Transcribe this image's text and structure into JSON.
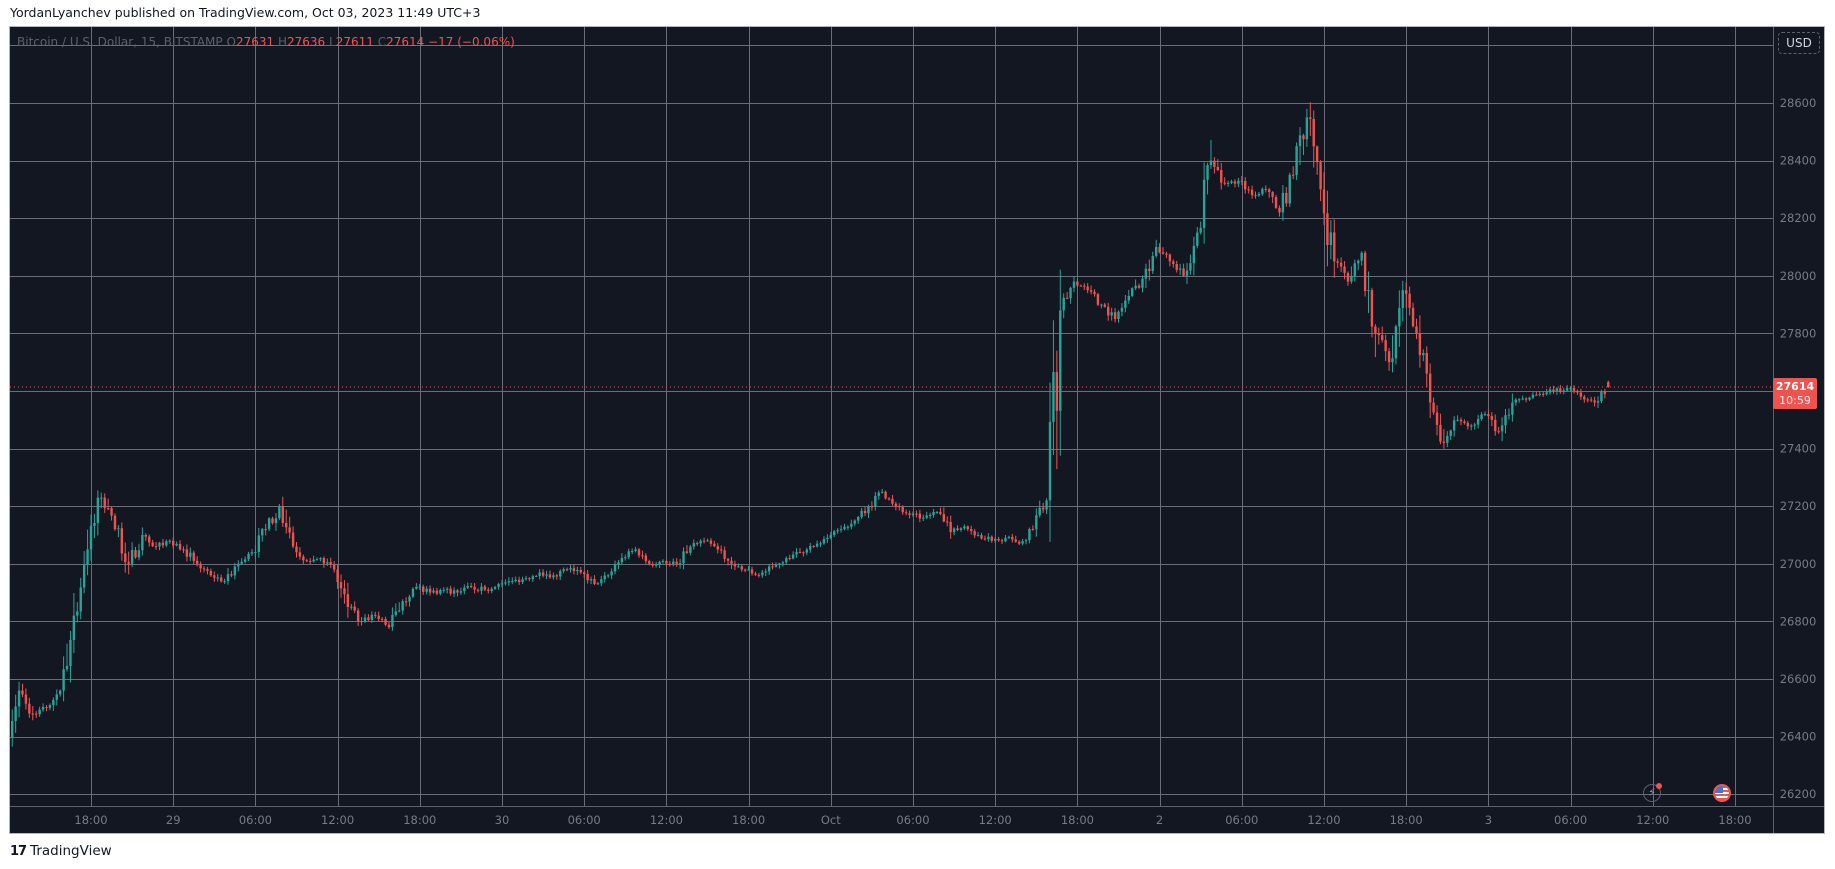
{
  "header": {
    "published": "YordanLyanchev published on TradingView.com, Oct 03, 2023 11:49 UTC+3"
  },
  "legend": {
    "symbol": "Bitcoin / U.S. Dollar, 15, BITSTAMP",
    "o_label": "O",
    "o": "27631",
    "h_label": "H",
    "h": "27636",
    "l_label": "L",
    "l": "27611",
    "c_label": "C",
    "c": "27614",
    "change": "−17 (−0.06%)"
  },
  "currency": "USD",
  "last_price": {
    "price": "27614",
    "countdown": "10:59",
    "value": 27614
  },
  "colors": {
    "background": "#131722",
    "grid": "#6a6d78",
    "up": "#26a69a",
    "down": "#ef5350",
    "axis_text": "#787b86"
  },
  "footer": {
    "brand": "TradingView",
    "logo": "17"
  },
  "icons": {
    "events": [
      "lightning-event-icon",
      "us-flag-event-icon"
    ]
  },
  "chart_data": {
    "type": "candlestick",
    "title": "Bitcoin / U.S. Dollar, 15, BITSTAMP",
    "interval": "15m",
    "xlabel": "",
    "ylabel": "USD",
    "ylim": [
      26160,
      28880
    ],
    "grid": true,
    "y_ticks": [
      26200,
      26400,
      26600,
      26800,
      27000,
      27200,
      27400,
      27600,
      27800,
      28000,
      28200,
      28400,
      28600
    ],
    "x_ticks": [
      "18:00",
      "29",
      "06:00",
      "12:00",
      "18:00",
      "30",
      "06:00",
      "12:00",
      "18:00",
      "Oct",
      "06:00",
      "12:00",
      "18:00",
      "2",
      "06:00",
      "12:00",
      "18:00",
      "3",
      "06:00",
      "12:00",
      "18:00"
    ],
    "x_tick_hours": [
      0,
      6,
      12,
      18,
      24,
      30,
      36,
      42,
      48,
      54,
      60,
      66,
      72,
      78,
      84,
      90,
      96,
      102,
      108,
      114,
      120
    ],
    "start_hour": -6,
    "hourly_close_note": "approximate hourly closes read from chart; hour 0 = Sep 28 18:00",
    "hourly_closes": [
      26400,
      26560,
      26480,
      26500,
      26560,
      26820,
      27050,
      27230,
      27120,
      27000,
      27100,
      27060,
      27080,
      27050,
      27000,
      26960,
      26940,
      27000,
      27040,
      27120,
      27200,
      27060,
      27010,
      27020,
      26980,
      26850,
      26800,
      26820,
      26780,
      26870,
      26920,
      26900,
      26910,
      26900,
      26920,
      26910,
      26930,
      26940,
      26950,
      26970,
      26960,
      26980,
      26970,
      26930,
      26960,
      27020,
      27050,
      27000,
      27010,
      27000,
      27060,
      27080,
      27050,
      27000,
      26980,
      26960,
      26990,
      27020,
      27040,
      27060,
      27090,
      27120,
      27150,
      27200,
      27250,
      27200,
      27170,
      27160,
      27180,
      27110,
      27130,
      27100,
      27080,
      27090,
      27070,
      27120,
      27220,
      27880,
      27980,
      27950,
      27900,
      27850,
      27930,
      27990,
      28100,
      28050,
      28000,
      28150,
      28400,
      28320,
      28330,
      28280,
      28300,
      28220,
      28350,
      28550,
      28300,
      28050,
      27980,
      28080,
      27800,
      27700,
      27950,
      27800,
      27560,
      27420,
      27500,
      27480,
      27520,
      27460,
      27560,
      27570,
      27590,
      27600,
      27610,
      27580,
      27560,
      27614
    ],
    "series": [
      {
        "name": "BTCUSD",
        "last": 27614
      }
    ]
  }
}
